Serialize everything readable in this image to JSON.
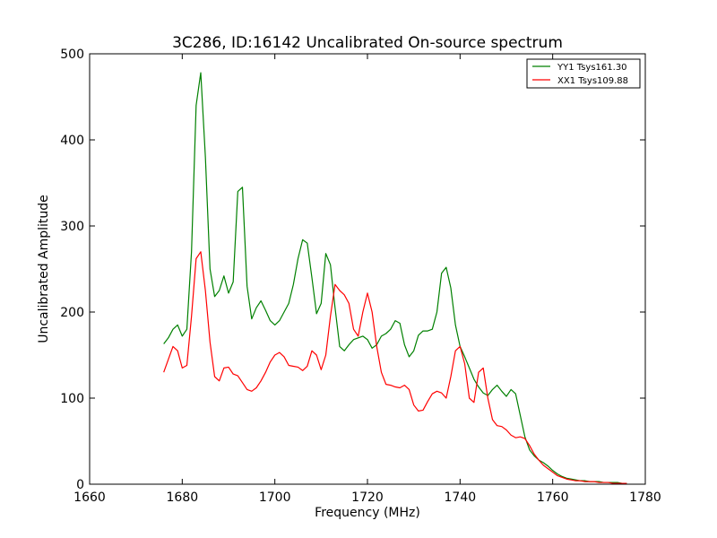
{
  "chart_data": {
    "type": "line",
    "title": "3C286, ID:16142 Uncalibrated On-source spectrum",
    "xlabel": "Frequency (MHz)",
    "ylabel": "Uncalibrated Amplitude",
    "xlim": [
      1660,
      1780
    ],
    "ylim": [
      0,
      500
    ],
    "xticks": [
      1660,
      1680,
      1700,
      1720,
      1740,
      1760,
      1780
    ],
    "yticks": [
      0,
      100,
      200,
      300,
      400,
      500
    ],
    "grid": false,
    "legend_position": "top-right",
    "series": [
      {
        "name": "YY1 Tsys161.30",
        "color": "#008000",
        "x": [
          1676,
          1677,
          1678,
          1679,
          1680,
          1681,
          1682,
          1683,
          1684,
          1685,
          1686,
          1687,
          1688,
          1689,
          1690,
          1691,
          1692,
          1693,
          1694,
          1695,
          1696,
          1697,
          1698,
          1699,
          1700,
          1701,
          1702,
          1703,
          1704,
          1705,
          1706,
          1707,
          1708,
          1709,
          1710,
          1711,
          1712,
          1713,
          1714,
          1715,
          1716,
          1717,
          1718,
          1719,
          1720,
          1721,
          1722,
          1723,
          1724,
          1725,
          1726,
          1727,
          1728,
          1729,
          1730,
          1731,
          1732,
          1733,
          1734,
          1735,
          1736,
          1737,
          1738,
          1739,
          1740,
          1741,
          1742,
          1743,
          1744,
          1745,
          1746,
          1747,
          1748,
          1749,
          1750,
          1751,
          1752,
          1753,
          1754,
          1755,
          1756,
          1757,
          1758,
          1759,
          1760,
          1761,
          1762,
          1763,
          1764,
          1765,
          1766,
          1767,
          1768,
          1769,
          1770,
          1771,
          1772,
          1773,
          1774,
          1775,
          1776
        ],
        "values": [
          163,
          170,
          180,
          185,
          172,
          180,
          270,
          440,
          478,
          380,
          250,
          218,
          225,
          242,
          222,
          235,
          340,
          345,
          230,
          192,
          205,
          213,
          202,
          190,
          185,
          190,
          200,
          210,
          232,
          262,
          284,
          280,
          240,
          198,
          210,
          268,
          255,
          205,
          160,
          155,
          162,
          168,
          170,
          172,
          168,
          158,
          162,
          172,
          175,
          180,
          190,
          187,
          162,
          148,
          155,
          173,
          178,
          178,
          180,
          200,
          245,
          252,
          228,
          185,
          160,
          148,
          135,
          122,
          113,
          106,
          103,
          110,
          115,
          108,
          102,
          110,
          105,
          80,
          55,
          40,
          33,
          28,
          25,
          21,
          16,
          12,
          9,
          7,
          6,
          5,
          4,
          4,
          3,
          3,
          3,
          2,
          2,
          2,
          2,
          1,
          1
        ]
      },
      {
        "name": "XX1 Tsys109.88",
        "color": "#ff0000",
        "x": [
          1676,
          1677,
          1678,
          1679,
          1680,
          1681,
          1682,
          1683,
          1684,
          1685,
          1686,
          1687,
          1688,
          1689,
          1690,
          1691,
          1692,
          1693,
          1694,
          1695,
          1696,
          1697,
          1698,
          1699,
          1700,
          1701,
          1702,
          1703,
          1704,
          1705,
          1706,
          1707,
          1708,
          1709,
          1710,
          1711,
          1712,
          1713,
          1714,
          1715,
          1716,
          1717,
          1718,
          1719,
          1720,
          1721,
          1722,
          1723,
          1724,
          1725,
          1726,
          1727,
          1728,
          1729,
          1730,
          1731,
          1732,
          1733,
          1734,
          1735,
          1736,
          1737,
          1738,
          1739,
          1740,
          1741,
          1742,
          1743,
          1744,
          1745,
          1746,
          1747,
          1748,
          1749,
          1750,
          1751,
          1752,
          1753,
          1754,
          1755,
          1756,
          1757,
          1758,
          1759,
          1760,
          1761,
          1762,
          1763,
          1764,
          1765,
          1766,
          1767,
          1768,
          1769,
          1770,
          1771,
          1772,
          1773,
          1774,
          1775,
          1776
        ],
        "values": [
          130,
          145,
          160,
          155,
          135,
          138,
          195,
          262,
          270,
          225,
          165,
          125,
          120,
          135,
          136,
          128,
          126,
          118,
          110,
          108,
          112,
          120,
          130,
          142,
          150,
          153,
          148,
          138,
          137,
          136,
          132,
          137,
          155,
          150,
          133,
          150,
          195,
          232,
          225,
          220,
          210,
          180,
          172,
          200,
          222,
          200,
          160,
          130,
          116,
          115,
          113,
          112,
          115,
          110,
          92,
          85,
          86,
          96,
          105,
          108,
          106,
          100,
          125,
          155,
          160,
          140,
          100,
          95,
          130,
          135,
          100,
          75,
          68,
          67,
          63,
          57,
          54,
          55,
          53,
          45,
          35,
          28,
          22,
          18,
          14,
          10,
          8,
          6,
          5,
          4,
          4,
          3,
          3,
          3,
          2,
          2,
          2,
          1,
          1,
          1,
          1
        ]
      }
    ]
  }
}
